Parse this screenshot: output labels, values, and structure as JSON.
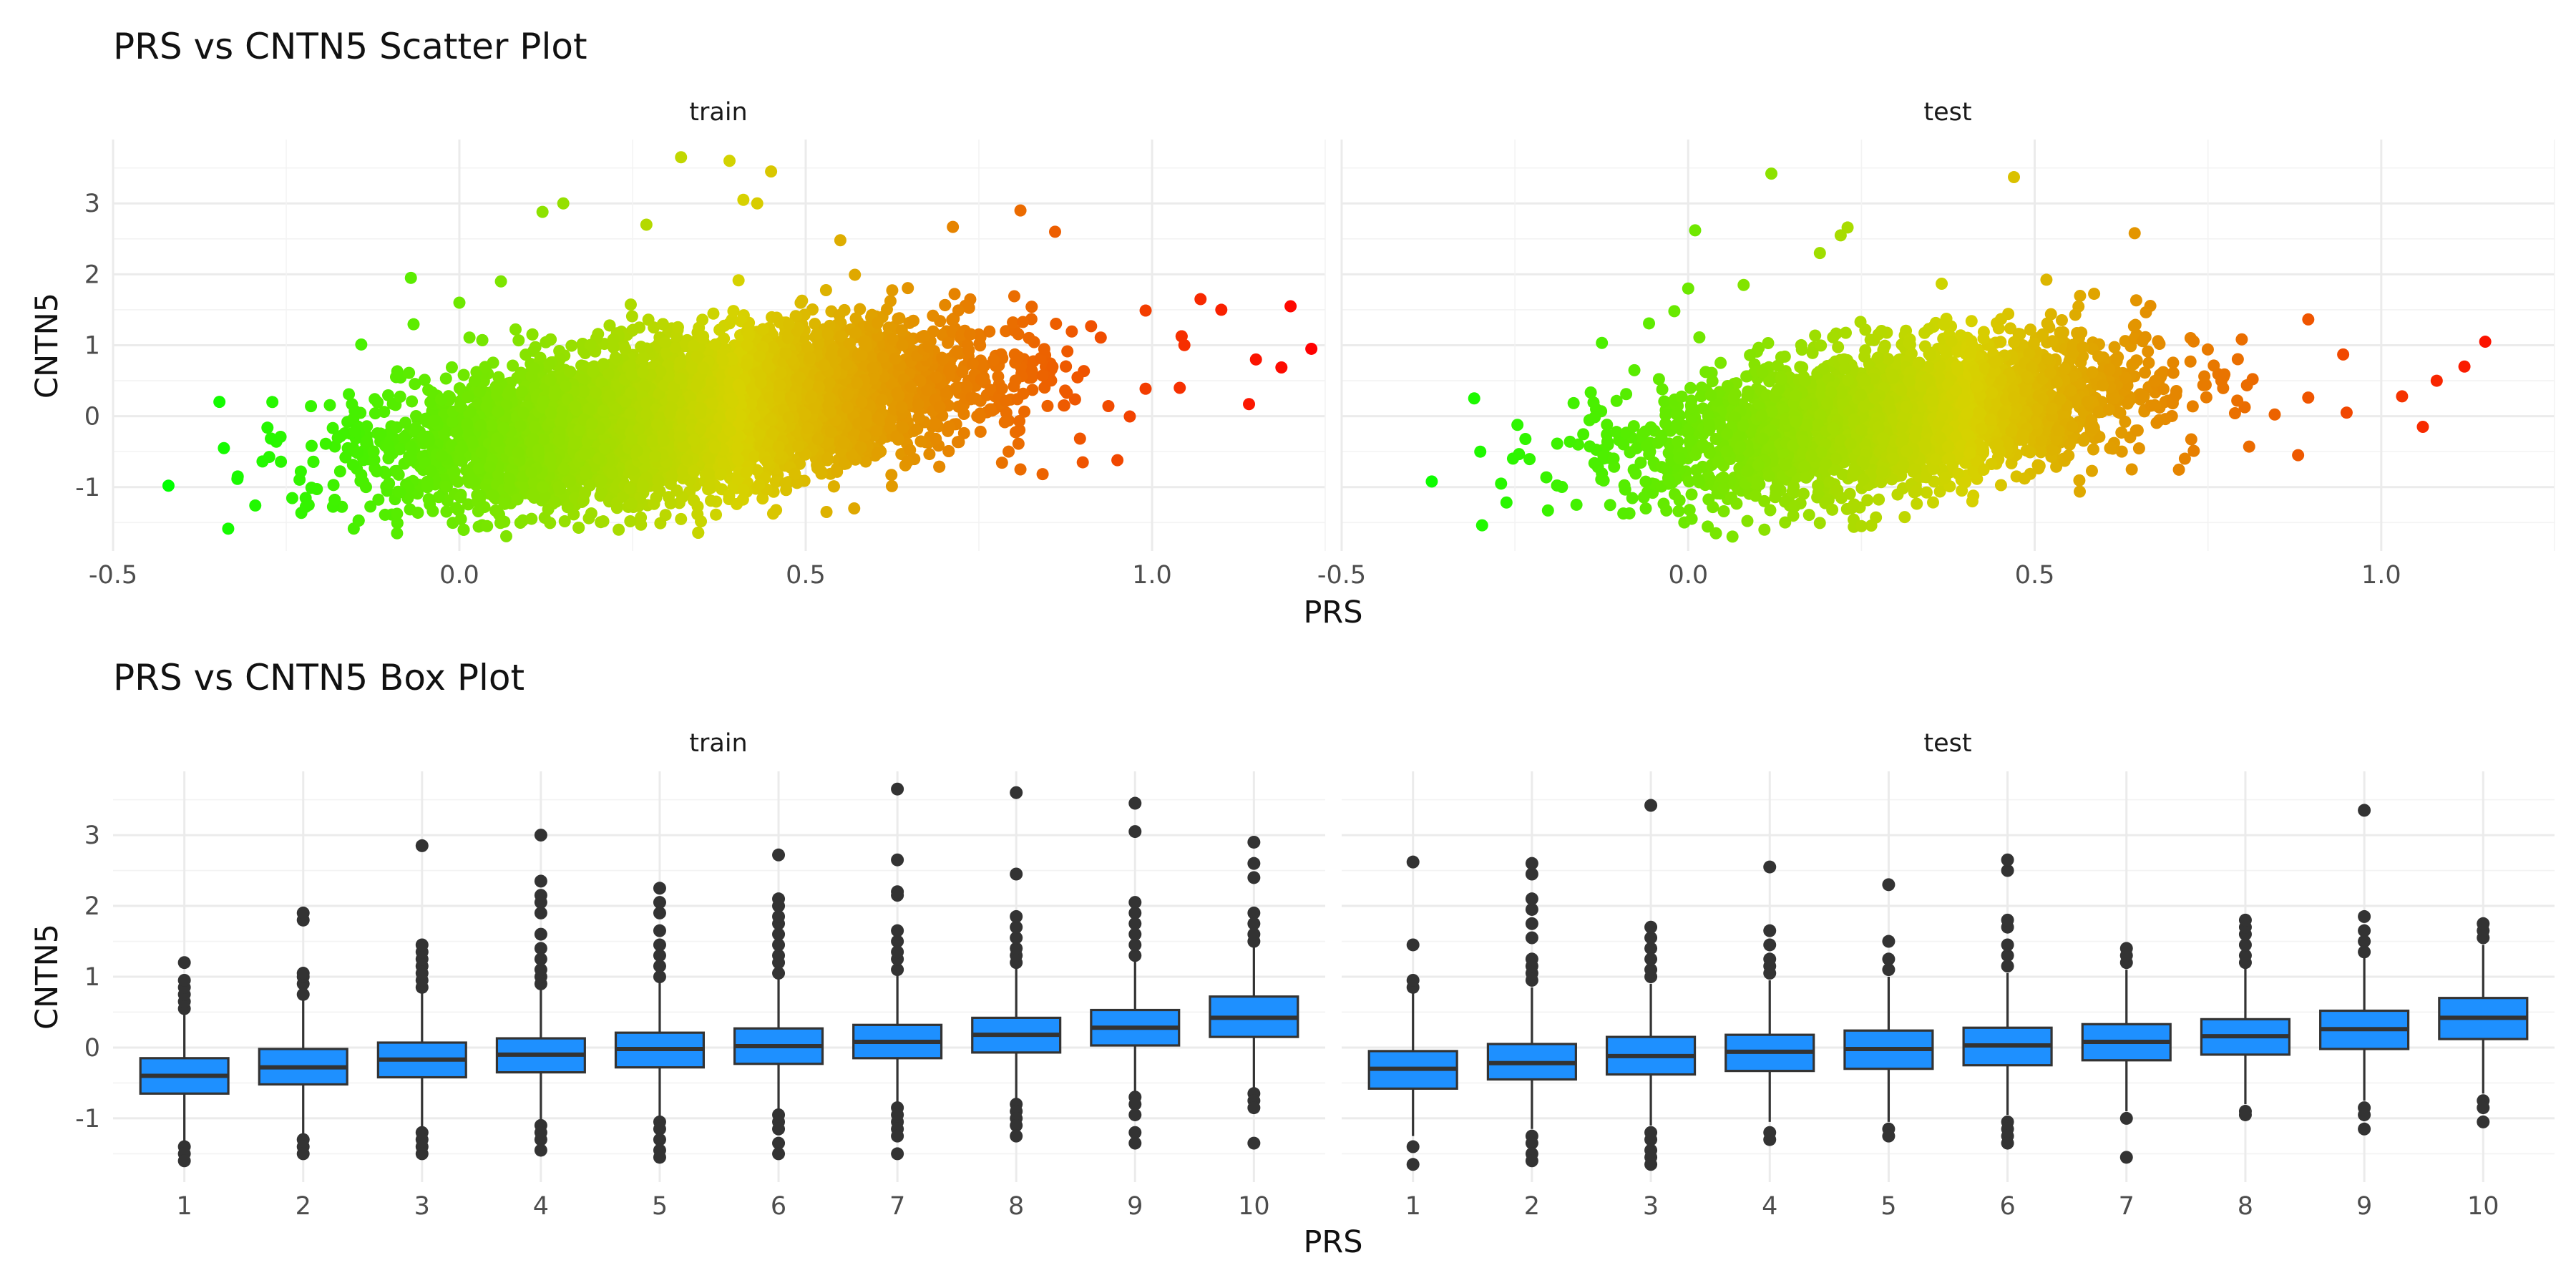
{
  "colors": {
    "gradient_low": "#00ff00",
    "gradient_high": "#ff0000",
    "box_fill": "#1e90ff",
    "box_line": "#333333",
    "grid": "#ebebeb"
  },
  "chart_data": [
    {
      "type": "scatter",
      "title": "PRS vs CNTN5 Scatter Plot",
      "xlabel": "PRS",
      "ylabel": "CNTN5",
      "facets": [
        "train",
        "test"
      ],
      "xlim": [
        -0.5,
        1.25
      ],
      "ylim": [
        -1.9,
        3.9
      ],
      "x_ticks": [
        "-0.5",
        "0.0",
        "0.5",
        "1.0"
      ],
      "y_ticks": [
        "-1",
        "0",
        "1",
        "2",
        "3"
      ],
      "color_by": "PRS",
      "grid": true,
      "legend": "none",
      "cloud": {
        "slope": 1.3,
        "intercept": -0.4,
        "train": {
          "n": 6500,
          "x_mean": 0.33,
          "x_sd": 0.2,
          "resid_sd": 0.5
        },
        "test": {
          "n": 2800,
          "x_mean": 0.3,
          "x_sd": 0.18,
          "resid_sd": 0.5
        }
      },
      "series": [
        {
          "name": "train",
          "points": [
            [
              -0.42,
              -0.98
            ],
            [
              -0.34,
              -0.45
            ],
            [
              -0.27,
              0.2
            ],
            [
              -0.32,
              -0.85
            ],
            [
              0.32,
              3.65
            ],
            [
              0.39,
              3.6
            ],
            [
              0.45,
              3.45
            ],
            [
              0.41,
              3.05
            ],
            [
              0.43,
              3.0
            ],
            [
              0.15,
              3.0
            ],
            [
              0.12,
              2.88
            ],
            [
              0.27,
              2.7
            ],
            [
              0.81,
              2.9
            ],
            [
              0.86,
              2.6
            ],
            [
              0.55,
              2.48
            ],
            [
              -0.07,
              1.95
            ],
            [
              0.06,
              1.9
            ],
            [
              0.0,
              1.6
            ],
            [
              1.07,
              1.65
            ],
            [
              1.1,
              1.5
            ],
            [
              1.2,
              1.55
            ],
            [
              1.23,
              0.95
            ],
            [
              1.15,
              0.8
            ],
            [
              1.14,
              0.17
            ],
            [
              1.04,
              0.4
            ],
            [
              0.9,
              -0.65
            ],
            [
              0.95,
              -0.62
            ],
            [
              0.81,
              -0.75
            ],
            [
              0.23,
              -1.6
            ],
            [
              0.04,
              -1.55
            ],
            [
              -0.09,
              -1.65
            ],
            [
              0.53,
              -1.35
            ],
            [
              0.57,
              -1.3
            ],
            [
              0.32,
              -1.45
            ]
          ]
        },
        {
          "name": "test",
          "points": [
            [
              -0.37,
              -0.92
            ],
            [
              -0.3,
              -0.5
            ],
            [
              -0.27,
              -0.95
            ],
            [
              0.12,
              3.42
            ],
            [
              0.47,
              3.37
            ],
            [
              0.01,
              2.62
            ],
            [
              0.23,
              2.66
            ],
            [
              0.22,
              2.55
            ],
            [
              0.08,
              1.85
            ],
            [
              0.0,
              1.8
            ],
            [
              -0.02,
              1.48
            ],
            [
              0.19,
              2.3
            ],
            [
              1.15,
              1.05
            ],
            [
              1.12,
              0.7
            ],
            [
              1.08,
              0.5
            ],
            [
              1.03,
              0.28
            ],
            [
              0.95,
              0.05
            ],
            [
              1.06,
              -0.15
            ],
            [
              0.88,
              -0.55
            ],
            [
              0.64,
              -0.75
            ],
            [
              0.25,
              -1.55
            ],
            [
              0.04,
              -1.65
            ],
            [
              0.11,
              -1.6
            ],
            [
              0.41,
              -1.2
            ]
          ]
        }
      ]
    },
    {
      "type": "box",
      "title": "PRS vs CNTN5 Box Plot",
      "xlabel": "PRS",
      "ylabel": "CNTN5",
      "facets": [
        "train",
        "test"
      ],
      "categories": [
        "1",
        "2",
        "3",
        "4",
        "5",
        "6",
        "7",
        "8",
        "9",
        "10"
      ],
      "ylim": [
        -1.9,
        3.9
      ],
      "y_ticks": [
        "-1",
        "0",
        "1",
        "2",
        "3"
      ],
      "grid": true,
      "series": [
        {
          "name": "train",
          "boxes": [
            {
              "q1": -0.65,
              "median": -0.4,
              "q3": -0.15,
              "lower": -1.35,
              "upper": 0.5
            },
            {
              "q1": -0.52,
              "median": -0.28,
              "q3": -0.02,
              "lower": -1.25,
              "upper": 0.7
            },
            {
              "q1": -0.42,
              "median": -0.17,
              "q3": 0.07,
              "lower": -1.15,
              "upper": 0.8
            },
            {
              "q1": -0.35,
              "median": -0.1,
              "q3": 0.13,
              "lower": -1.05,
              "upper": 0.85
            },
            {
              "q1": -0.28,
              "median": -0.02,
              "q3": 0.21,
              "lower": -0.98,
              "upper": 0.95
            },
            {
              "q1": -0.23,
              "median": 0.02,
              "q3": 0.27,
              "lower": -0.92,
              "upper": 1.0
            },
            {
              "q1": -0.15,
              "median": 0.08,
              "q3": 0.32,
              "lower": -0.8,
              "upper": 1.05
            },
            {
              "q1": -0.07,
              "median": 0.18,
              "q3": 0.42,
              "lower": -0.75,
              "upper": 1.15
            },
            {
              "q1": 0.03,
              "median": 0.28,
              "q3": 0.53,
              "lower": -0.65,
              "upper": 1.25
            },
            {
              "q1": 0.15,
              "median": 0.42,
              "q3": 0.72,
              "lower": -0.6,
              "upper": 1.45
            }
          ],
          "outliers": [
            [
              -1.4,
              -1.5,
              -1.6,
              0.55,
              0.65,
              0.75,
              0.85,
              0.95,
              1.2
            ],
            [
              -1.3,
              -1.4,
              -1.5,
              0.75,
              0.9,
              1.0,
              1.05,
              1.8,
              1.9
            ],
            [
              -1.2,
              -1.3,
              -1.4,
              -1.5,
              0.85,
              0.95,
              1.05,
              1.15,
              1.25,
              1.35,
              1.45,
              2.85
            ],
            [
              -1.1,
              -1.2,
              -1.3,
              -1.45,
              0.9,
              1.0,
              1.1,
              1.25,
              1.4,
              1.6,
              1.9,
              2.05,
              2.15,
              2.35,
              3.0
            ],
            [
              -1.05,
              -1.15,
              -1.3,
              -1.45,
              -1.55,
              1.0,
              1.15,
              1.3,
              1.45,
              1.65,
              1.9,
              2.05,
              2.25
            ],
            [
              -0.95,
              -1.05,
              -1.15,
              -1.35,
              -1.5,
              1.05,
              1.2,
              1.3,
              1.45,
              1.6,
              1.75,
              1.85,
              2.0,
              2.1,
              2.72
            ],
            [
              -0.85,
              -0.95,
              -1.05,
              -1.15,
              -1.25,
              -1.5,
              1.1,
              1.25,
              1.35,
              1.5,
              1.65,
              2.15,
              2.2,
              2.65,
              3.65
            ],
            [
              -0.8,
              -0.9,
              -1.0,
              -1.1,
              -1.25,
              1.2,
              1.3,
              1.4,
              1.55,
              1.7,
              1.85,
              2.45,
              3.6
            ],
            [
              -0.7,
              -0.8,
              -0.95,
              -1.2,
              -1.35,
              1.3,
              1.45,
              1.6,
              1.75,
              1.9,
              2.05,
              3.05,
              3.45
            ],
            [
              -0.65,
              -0.75,
              -0.85,
              -1.35,
              1.5,
              1.6,
              1.75,
              1.9,
              2.4,
              2.6,
              2.9
            ]
          ]
        },
        {
          "name": "test",
          "boxes": [
            {
              "q1": -0.58,
              "median": -0.3,
              "q3": -0.05,
              "lower": -1.25,
              "upper": 0.8
            },
            {
              "q1": -0.45,
              "median": -0.22,
              "q3": 0.05,
              "lower": -1.15,
              "upper": 0.85
            },
            {
              "q1": -0.38,
              "median": -0.12,
              "q3": 0.15,
              "lower": -1.1,
              "upper": 0.9
            },
            {
              "q1": -0.33,
              "median": -0.06,
              "q3": 0.18,
              "lower": -1.05,
              "upper": 0.95
            },
            {
              "q1": -0.3,
              "median": -0.02,
              "q3": 0.24,
              "lower": -1.05,
              "upper": 1.0
            },
            {
              "q1": -0.25,
              "median": 0.03,
              "q3": 0.28,
              "lower": -0.95,
              "upper": 1.05
            },
            {
              "q1": -0.18,
              "median": 0.08,
              "q3": 0.33,
              "lower": -0.9,
              "upper": 1.1
            },
            {
              "q1": -0.1,
              "median": 0.16,
              "q3": 0.4,
              "lower": -0.8,
              "upper": 1.15
            },
            {
              "q1": -0.02,
              "median": 0.26,
              "q3": 0.52,
              "lower": -0.75,
              "upper": 1.3
            },
            {
              "q1": 0.12,
              "median": 0.42,
              "q3": 0.7,
              "lower": -0.65,
              "upper": 1.45
            }
          ],
          "outliers": [
            [
              -1.4,
              -1.65,
              0.85,
              0.95,
              1.45,
              2.62
            ],
            [
              -1.25,
              -1.35,
              -1.5,
              -1.6,
              0.95,
              1.05,
              1.15,
              1.25,
              1.55,
              1.75,
              1.95,
              2.1,
              2.45,
              2.6
            ],
            [
              -1.2,
              -1.3,
              -1.45,
              -1.55,
              -1.65,
              1.0,
              1.1,
              1.25,
              1.4,
              1.55,
              1.7,
              3.42
            ],
            [
              -1.2,
              -1.3,
              1.05,
              1.15,
              1.25,
              1.45,
              1.65,
              2.55
            ],
            [
              -1.15,
              -1.25,
              1.1,
              1.25,
              1.5,
              2.3
            ],
            [
              -1.05,
              -1.15,
              -1.25,
              -1.35,
              1.15,
              1.3,
              1.45,
              1.7,
              1.8,
              2.5,
              2.65
            ],
            [
              -1.0,
              -1.55,
              1.2,
              1.3,
              1.4
            ],
            [
              -0.9,
              -0.95,
              1.2,
              1.3,
              1.45,
              1.6,
              1.7,
              1.8
            ],
            [
              -0.85,
              -0.95,
              -1.15,
              1.35,
              1.5,
              1.65,
              1.85,
              3.35
            ],
            [
              -0.75,
              -0.85,
              -1.05,
              1.55,
              1.65,
              1.75
            ]
          ]
        }
      ]
    }
  ]
}
